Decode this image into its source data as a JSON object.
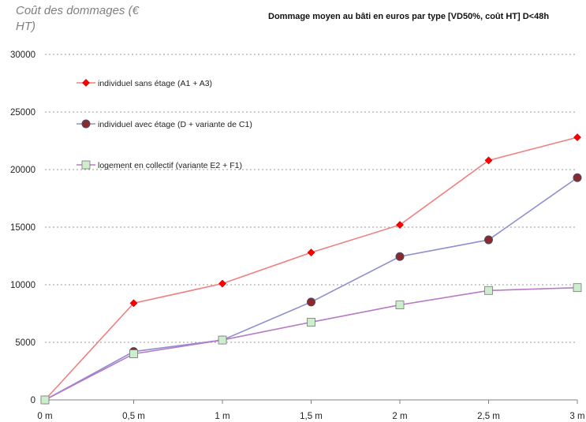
{
  "chart_data": {
    "type": "line",
    "title": "Dommage moyen au bâti en euros par type [VD50%, coût HT] D<48h",
    "ylabel": "Coût des dommages (€ HT)",
    "xlabel": "",
    "categories": [
      "0 m",
      "0,5 m",
      "1 m",
      "1,5 m",
      "2 m",
      "2,5 m",
      "3 m"
    ],
    "ylim": [
      0,
      30000
    ],
    "yticks": [
      0,
      5000,
      10000,
      15000,
      20000,
      25000,
      30000
    ],
    "grid": "horizontal dotted",
    "legend_position": "top-left",
    "series": [
      {
        "name": "individuel sans étage (A1 + A3)",
        "values": [
          0,
          8400,
          10100,
          12800,
          15200,
          20800,
          22800
        ],
        "line_color": "#f08080",
        "marker": "diamond",
        "marker_color": "#ff0000"
      },
      {
        "name": "individuel avec étage (D + variante de C1)",
        "values": [
          0,
          4200,
          5200,
          8500,
          12450,
          13900,
          19300
        ],
        "line_color": "#8f8fd0",
        "marker": "circle",
        "marker_color": "#8b2a2a"
      },
      {
        "name": "logement en collectif (variante E2 + F1)",
        "values": [
          0,
          4000,
          5200,
          6750,
          8250,
          9500,
          9750
        ],
        "line_color": "#b87ac8",
        "marker": "square",
        "marker_color": "#cceecc"
      }
    ]
  }
}
